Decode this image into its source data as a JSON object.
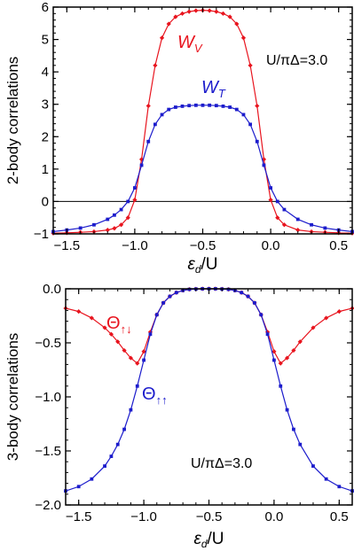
{
  "chart_data": [
    {
      "type": "line",
      "xlabel": "ε_d/U",
      "ylabel": "2-body correlations",
      "annotation": "U/πΔ=3.0",
      "xlim": [
        -1.6,
        0.6
      ],
      "ylim": [
        -1,
        6
      ],
      "xticks": [
        -1.5,
        -1.0,
        -0.5,
        0.0,
        0.5
      ],
      "xtick_labels": [
        "−1.5",
        "−1.0",
        "−0.5",
        "0.0",
        "0.5"
      ],
      "yticks": [
        -1,
        0,
        1,
        2,
        3,
        4,
        5,
        6
      ],
      "ytick_labels": [
        "−1",
        "0",
        "1",
        "2",
        "3",
        "4",
        "5",
        "6"
      ],
      "reference_line_y": 0,
      "series": [
        {
          "name": "W_V",
          "label_main": "W",
          "label_sub": "V",
          "color": "#e8141e",
          "marker": "diamond",
          "x": [
            -1.6,
            -1.5,
            -1.4,
            -1.3,
            -1.2,
            -1.15,
            -1.1,
            -1.05,
            -1.0,
            -0.95,
            -0.9,
            -0.85,
            -0.8,
            -0.75,
            -0.7,
            -0.65,
            -0.6,
            -0.55,
            -0.5,
            -0.45,
            -0.4,
            -0.35,
            -0.3,
            -0.25,
            -0.2,
            -0.15,
            -0.1,
            -0.05,
            0.0,
            0.05,
            0.1,
            0.2,
            0.3,
            0.4,
            0.5,
            0.6
          ],
          "y": [
            -0.98,
            -0.97,
            -0.95,
            -0.93,
            -0.88,
            -0.83,
            -0.72,
            -0.5,
            0.05,
            1.3,
            2.95,
            4.2,
            5.05,
            5.48,
            5.7,
            5.8,
            5.86,
            5.89,
            5.9,
            5.89,
            5.86,
            5.8,
            5.7,
            5.48,
            5.05,
            4.2,
            2.95,
            1.3,
            0.05,
            -0.5,
            -0.72,
            -0.88,
            -0.93,
            -0.95,
            -0.97,
            -0.98
          ]
        },
        {
          "name": "W_T",
          "label_main": "W",
          "label_sub": "T",
          "color": "#1c1ccc",
          "marker": "square",
          "x": [
            -1.6,
            -1.5,
            -1.4,
            -1.3,
            -1.2,
            -1.15,
            -1.1,
            -1.05,
            -1.0,
            -0.95,
            -0.9,
            -0.85,
            -0.8,
            -0.75,
            -0.7,
            -0.65,
            -0.6,
            -0.55,
            -0.5,
            -0.45,
            -0.4,
            -0.35,
            -0.3,
            -0.25,
            -0.2,
            -0.15,
            -0.1,
            -0.05,
            0.0,
            0.05,
            0.1,
            0.2,
            0.3,
            0.4,
            0.5,
            0.6
          ],
          "y": [
            -0.93,
            -0.88,
            -0.82,
            -0.72,
            -0.55,
            -0.42,
            -0.25,
            0.0,
            0.42,
            1.12,
            1.85,
            2.38,
            2.68,
            2.84,
            2.91,
            2.94,
            2.96,
            2.97,
            2.97,
            2.97,
            2.96,
            2.94,
            2.91,
            2.84,
            2.68,
            2.38,
            1.85,
            1.12,
            0.42,
            0.0,
            -0.25,
            -0.55,
            -0.72,
            -0.82,
            -0.88,
            -0.93
          ]
        }
      ]
    },
    {
      "type": "line",
      "xlabel": "ε_d/U",
      "ylabel": "3-body  correlations",
      "annotation": "U/πΔ=3.0",
      "xlim": [
        -1.6,
        0.6
      ],
      "ylim": [
        -2.0,
        0.0
      ],
      "xticks": [
        -1.5,
        -1.0,
        -0.5,
        0.0,
        0.5
      ],
      "xtick_labels": [
        "−1.5",
        "−1.0",
        "−0.5",
        "0.0",
        "0.5"
      ],
      "yticks": [
        -2.0,
        -1.5,
        -1.0,
        -0.5,
        0.0
      ],
      "ytick_labels": [
        "−2.0",
        "−1.5",
        "−1.0",
        "−0.5",
        "0.0"
      ],
      "series": [
        {
          "name": "Θ↑↓",
          "label_main": "Θ",
          "label_sub": "↑↓",
          "color": "#e8141e",
          "marker": "diamond",
          "x": [
            -1.6,
            -1.5,
            -1.4,
            -1.3,
            -1.25,
            -1.2,
            -1.15,
            -1.1,
            -1.05,
            -1.0,
            -0.95,
            -0.9,
            -0.85,
            -0.8,
            -0.75,
            -0.7,
            -0.65,
            -0.6,
            -0.55,
            -0.5,
            -0.45,
            -0.4,
            -0.35,
            -0.3,
            -0.25,
            -0.2,
            -0.15,
            -0.1,
            -0.05,
            0.0,
            0.05,
            0.1,
            0.15,
            0.2,
            0.3,
            0.4,
            0.5,
            0.6
          ],
          "y": [
            -0.18,
            -0.21,
            -0.27,
            -0.36,
            -0.42,
            -0.49,
            -0.57,
            -0.64,
            -0.69,
            -0.58,
            -0.4,
            -0.24,
            -0.13,
            -0.07,
            -0.035,
            -0.015,
            -0.005,
            -0.002,
            0.0,
            0.0,
            0.0,
            -0.002,
            -0.005,
            -0.015,
            -0.035,
            -0.07,
            -0.13,
            -0.24,
            -0.4,
            -0.58,
            -0.69,
            -0.64,
            -0.57,
            -0.49,
            -0.36,
            -0.27,
            -0.21,
            -0.18
          ]
        },
        {
          "name": "Θ↑↑",
          "label_main": "Θ",
          "label_sub": "↑↑",
          "color": "#1c1ccc",
          "marker": "square",
          "x": [
            -1.6,
            -1.5,
            -1.4,
            -1.3,
            -1.25,
            -1.2,
            -1.15,
            -1.1,
            -1.05,
            -1.0,
            -0.95,
            -0.9,
            -0.85,
            -0.8,
            -0.75,
            -0.7,
            -0.65,
            -0.6,
            -0.55,
            -0.5,
            -0.45,
            -0.4,
            -0.35,
            -0.3,
            -0.25,
            -0.2,
            -0.15,
            -0.1,
            -0.05,
            0.0,
            0.05,
            0.1,
            0.15,
            0.2,
            0.3,
            0.4,
            0.5,
            0.6
          ],
          "y": [
            -1.87,
            -1.83,
            -1.76,
            -1.64,
            -1.55,
            -1.44,
            -1.3,
            -1.12,
            -0.9,
            -0.66,
            -0.42,
            -0.24,
            -0.13,
            -0.07,
            -0.035,
            -0.015,
            -0.005,
            -0.002,
            0.0,
            0.0,
            0.0,
            -0.002,
            -0.005,
            -0.015,
            -0.035,
            -0.07,
            -0.13,
            -0.24,
            -0.42,
            -0.66,
            -0.9,
            -1.12,
            -1.3,
            -1.44,
            -1.64,
            -1.76,
            -1.83,
            -1.87
          ]
        }
      ]
    }
  ]
}
